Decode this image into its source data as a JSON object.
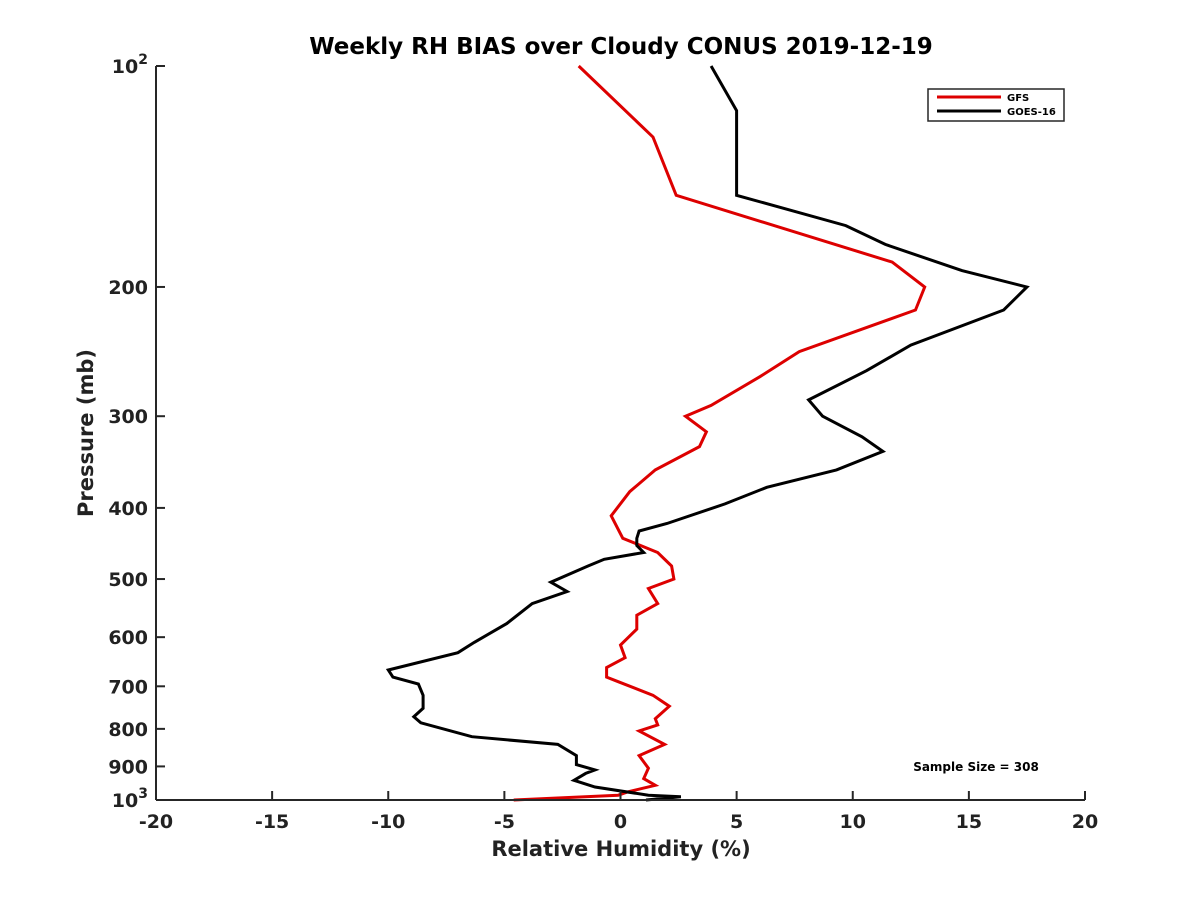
{
  "chart_data": {
    "type": "line",
    "title": "Weekly RH BIAS over Cloudy CONUS 2019-12-19",
    "xlabel": "Relative Humidity (%)",
    "ylabel": "Pressure (mb)",
    "xlim": [
      -20,
      20
    ],
    "ylim": [
      100,
      1000
    ],
    "yscale": "log",
    "y_reversed": true,
    "x_ticks": [
      "-20",
      "-15",
      "-10",
      "-5",
      "0",
      "5",
      "10",
      "15",
      "20"
    ],
    "y_ticks": [
      {
        "value": 100,
        "base": "10",
        "exp": "2"
      },
      {
        "value": 200,
        "label": "200"
      },
      {
        "value": 300,
        "label": "300"
      },
      {
        "value": 400,
        "label": "400"
      },
      {
        "value": 500,
        "label": "500"
      },
      {
        "value": 600,
        "label": "600"
      },
      {
        "value": 700,
        "label": "700"
      },
      {
        "value": 800,
        "label": "800"
      },
      {
        "value": 900,
        "label": "900"
      },
      {
        "value": 1000,
        "base": "10",
        "exp": "3"
      }
    ],
    "grid": false,
    "legend_position": "top-right",
    "series": [
      {
        "name": "GFS",
        "color": "#dd0000",
        "points": [
          [
            -1.8,
            100
          ],
          [
            1.4,
            125
          ],
          [
            2.4,
            150
          ],
          [
            11.7,
            185
          ],
          [
            13.1,
            200
          ],
          [
            12.7,
            215
          ],
          [
            7.7,
            245
          ],
          [
            6.0,
            265
          ],
          [
            3.9,
            290
          ],
          [
            2.8,
            300
          ],
          [
            3.7,
            315
          ],
          [
            3.4,
            330
          ],
          [
            1.5,
            355
          ],
          [
            0.4,
            380
          ],
          [
            -0.4,
            410
          ],
          [
            0.1,
            440
          ],
          [
            1.6,
            460
          ],
          [
            2.2,
            480
          ],
          [
            2.3,
            500
          ],
          [
            1.2,
            515
          ],
          [
            1.6,
            540
          ],
          [
            0.7,
            560
          ],
          [
            0.7,
            585
          ],
          [
            0,
            615
          ],
          [
            0.2,
            640
          ],
          [
            -0.6,
            660
          ],
          [
            -0.6,
            680
          ],
          [
            -0.1,
            690
          ],
          [
            1.4,
            720
          ],
          [
            2.1,
            745
          ],
          [
            1.5,
            775
          ],
          [
            1.6,
            790
          ],
          [
            0.8,
            805
          ],
          [
            1.9,
            840
          ],
          [
            0.8,
            870
          ],
          [
            1.2,
            905
          ],
          [
            1.0,
            935
          ],
          [
            1.5,
            955
          ],
          [
            0.3,
            975
          ],
          [
            -0.1,
            985
          ],
          [
            -4.6,
            1000
          ]
        ]
      },
      {
        "name": "GOES-16",
        "color": "#000000",
        "points": [
          [
            3.9,
            100
          ],
          [
            5.0,
            115
          ],
          [
            5.0,
            150
          ],
          [
            9.7,
            165
          ],
          [
            11.4,
            175
          ],
          [
            14.7,
            190
          ],
          [
            17.5,
            200
          ],
          [
            16.5,
            215
          ],
          [
            12.5,
            240
          ],
          [
            10.6,
            260
          ],
          [
            8.1,
            285
          ],
          [
            8.7,
            300
          ],
          [
            10.4,
            320
          ],
          [
            11.3,
            335
          ],
          [
            9.3,
            355
          ],
          [
            6.3,
            375
          ],
          [
            4.5,
            395
          ],
          [
            2.0,
            420
          ],
          [
            0.8,
            430
          ],
          [
            0.7,
            440
          ],
          [
            0.7,
            450
          ],
          [
            1.0,
            460
          ],
          [
            -0.7,
            470
          ],
          [
            -1.4,
            480
          ],
          [
            -3.0,
            505
          ],
          [
            -2.3,
            520
          ],
          [
            -3.8,
            540
          ],
          [
            -4.9,
            575
          ],
          [
            -6.3,
            610
          ],
          [
            -7.0,
            630
          ],
          [
            -10.0,
            665
          ],
          [
            -9.8,
            680
          ],
          [
            -8.7,
            695
          ],
          [
            -8.5,
            720
          ],
          [
            -8.5,
            750
          ],
          [
            -8.9,
            770
          ],
          [
            -8.6,
            785
          ],
          [
            -6.4,
            820
          ],
          [
            -2.7,
            840
          ],
          [
            -1.9,
            870
          ],
          [
            -1.9,
            895
          ],
          [
            -1.1,
            910
          ],
          [
            -1.5,
            920
          ],
          [
            -2.0,
            940
          ],
          [
            -1.1,
            960
          ],
          [
            1.2,
            985
          ],
          [
            2.6,
            990
          ],
          [
            1.1,
            1000
          ]
        ]
      }
    ],
    "annotations": [
      "Sample Size = 308"
    ]
  }
}
